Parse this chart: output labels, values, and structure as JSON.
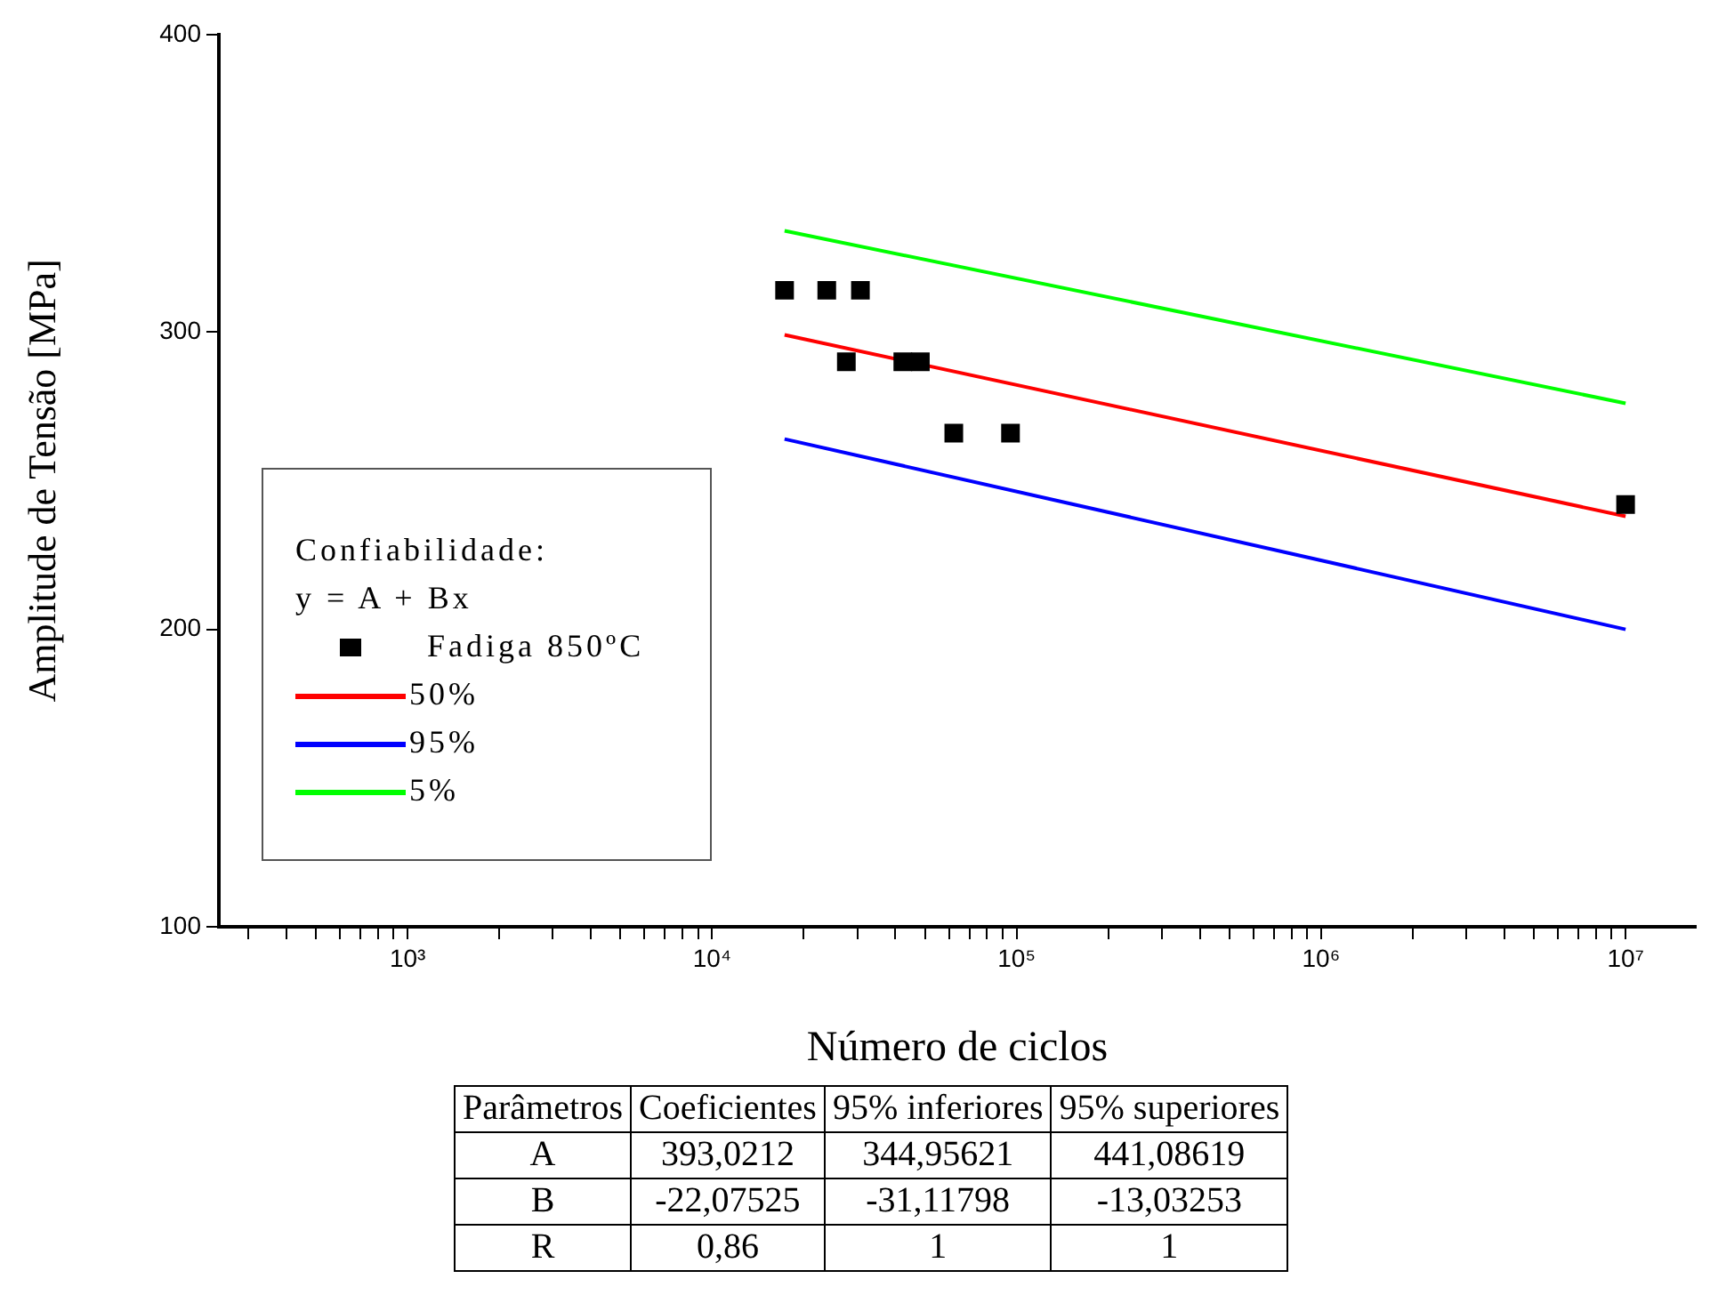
{
  "chart_data": {
    "type": "scatter",
    "xlabel": "Número de ciclos",
    "ylabel": "Amplitude de Tensão [MPa]",
    "legend_title": "Confiabilidade:\ny = A + Bx",
    "legend": "left",
    "log": "x",
    "grid": false,
    "xlim": [
      240,
      17000000
    ],
    "ylim": [
      100,
      400
    ],
    "yticks": [
      100,
      200,
      300,
      400
    ],
    "xticks": [
      {
        "value": 300,
        "label": null
      },
      {
        "value": 400,
        "label": null
      },
      {
        "value": 500,
        "label": null
      },
      {
        "value": 600,
        "label": null
      },
      {
        "value": 700,
        "label": null
      },
      {
        "value": 800,
        "label": null
      },
      {
        "value": 900,
        "label": null
      },
      {
        "value": 1000,
        "label": "10³"
      },
      {
        "value": 2000,
        "label": null
      },
      {
        "value": 3000,
        "label": null
      },
      {
        "value": 4000,
        "label": null
      },
      {
        "value": 5000,
        "label": null
      },
      {
        "value": 6000,
        "label": null
      },
      {
        "value": 7000,
        "label": null
      },
      {
        "value": 8000,
        "label": null
      },
      {
        "value": 9000,
        "label": null
      },
      {
        "value": 10000,
        "label": "10⁴"
      },
      {
        "value": 20000,
        "label": null
      },
      {
        "value": 30000,
        "label": null
      },
      {
        "value": 40000,
        "label": null
      },
      {
        "value": 50000,
        "label": null
      },
      {
        "value": 60000,
        "label": null
      },
      {
        "value": 70000,
        "label": null
      },
      {
        "value": 80000,
        "label": null
      },
      {
        "value": 90000,
        "label": null
      },
      {
        "value": 100000,
        "label": "10⁵"
      },
      {
        "value": 200000,
        "label": null
      },
      {
        "value": 300000,
        "label": null
      },
      {
        "value": 400000,
        "label": null
      },
      {
        "value": 500000,
        "label": null
      },
      {
        "value": 600000,
        "label": null
      },
      {
        "value": 700000,
        "label": null
      },
      {
        "value": 800000,
        "label": null
      },
      {
        "value": 900000,
        "label": null
      },
      {
        "value": 1000000,
        "label": "10⁶"
      },
      {
        "value": 2000000,
        "label": null
      },
      {
        "value": 3000000,
        "label": null
      },
      {
        "value": 4000000,
        "label": null
      },
      {
        "value": 5000000,
        "label": null
      },
      {
        "value": 6000000,
        "label": null
      },
      {
        "value": 7000000,
        "label": null
      },
      {
        "value": 8000000,
        "label": null
      },
      {
        "value": 9000000,
        "label": null
      },
      {
        "value": 10000000,
        "label": "10⁷"
      }
    ],
    "series": [
      {
        "name": "Fadiga 850ºC",
        "type": "scatter",
        "marker": "square",
        "color": "#000000",
        "x": [
          17300,
          23800,
          30700,
          27600,
          42300,
          48300,
          62200,
          95500,
          10000000
        ],
        "values": [
          314,
          314,
          314,
          290,
          290,
          290,
          266,
          266,
          242
        ]
      },
      {
        "name": "50%",
        "type": "line",
        "marker": "none",
        "color": "#ff0000",
        "x": [
          17300,
          10000000
        ],
        "values": [
          299,
          238
        ]
      },
      {
        "name": "95%",
        "type": "line",
        "marker": "none",
        "color": "#0000ff",
        "x": [
          17300,
          10000000
        ],
        "values": [
          264,
          200
        ]
      },
      {
        "name": "5%",
        "type": "line",
        "marker": "none",
        "color": "#00ff00",
        "x": [
          17300,
          10000000
        ],
        "values": [
          334,
          276
        ]
      }
    ],
    "annotations": [
      "Parâmetros",
      "Coeficientes",
      "95% inferiores",
      "95% superiores",
      "A",
      "393,0212",
      "344,95621",
      "441,08619",
      "B",
      "-22,07525",
      "-31,11798",
      "-13,03253",
      "R",
      "0,86",
      "1",
      "1"
    ]
  }
}
